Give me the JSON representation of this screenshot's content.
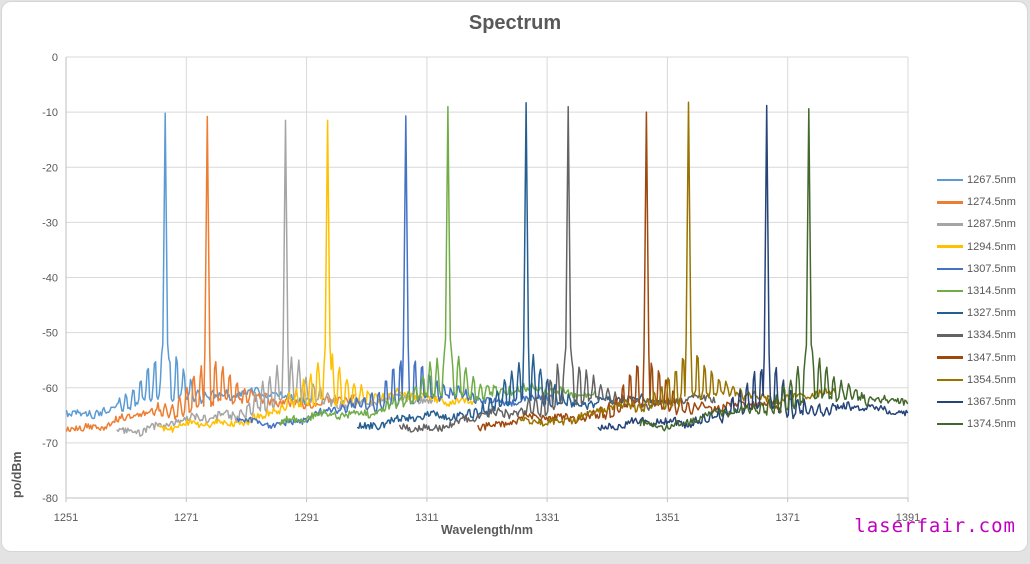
{
  "watermark": {
    "text": "laserfair.com",
    "color": "#C000C0"
  },
  "colors": {
    "background": "#ffffff",
    "frame_border": "#d6d6d6",
    "gridline": "#d9d9d9",
    "axis_line": "#bfbfbf",
    "text": "#595959"
  },
  "chart_data": {
    "type": "line",
    "title": "Spectrum",
    "xlabel": "Wavelength/nm",
    "ylabel": "po/dBm",
    "xlim": [
      1251,
      1391
    ],
    "ylim": [
      -80,
      0
    ],
    "x_ticks": [
      1251,
      1271,
      1291,
      1311,
      1331,
      1351,
      1371,
      1391
    ],
    "y_ticks": [
      0,
      -10,
      -20,
      -30,
      -40,
      -50,
      -60,
      -70,
      -80
    ],
    "grid": true,
    "legend_position": "right",
    "sidemode_period_nm": 1.2,
    "series": [
      {
        "name": "1267.5nm",
        "color": "#5B9BD5",
        "peak_nm": 1267.5,
        "peak_dbm": -10.2,
        "x_start": 1251.0,
        "x_end": 1292.0,
        "floor_start_dbm": -64.5,
        "floor_end_dbm": -61.5
      },
      {
        "name": "1274.5nm",
        "color": "#ED7D31",
        "peak_nm": 1274.5,
        "peak_dbm": -10.8,
        "x_start": 1251.0,
        "x_end": 1299.0,
        "floor_start_dbm": -67.0,
        "floor_end_dbm": -62.5
      },
      {
        "name": "1287.5nm",
        "color": "#A5A5A5",
        "peak_nm": 1287.5,
        "peak_dbm": -11.5,
        "x_start": 1259.5,
        "x_end": 1312.0,
        "floor_start_dbm": -67.5,
        "floor_end_dbm": -62.5
      },
      {
        "name": "1294.5nm",
        "color": "#FFC000",
        "peak_nm": 1294.5,
        "peak_dbm": -11.5,
        "x_start": 1266.5,
        "x_end": 1319.0,
        "floor_start_dbm": -67.5,
        "floor_end_dbm": -62.0
      },
      {
        "name": "1307.5nm",
        "color": "#4472C4",
        "peak_nm": 1307.5,
        "peak_dbm": -10.7,
        "x_start": 1279.5,
        "x_end": 1332.0,
        "floor_start_dbm": -66.5,
        "floor_end_dbm": -62.0
      },
      {
        "name": "1314.5nm",
        "color": "#70AD47",
        "peak_nm": 1314.5,
        "peak_dbm": -9.0,
        "x_start": 1286.5,
        "x_end": 1339.0,
        "floor_start_dbm": -66.0,
        "floor_end_dbm": -60.8
      },
      {
        "name": "1327.5nm",
        "color": "#255E91",
        "peak_nm": 1327.5,
        "peak_dbm": -8.3,
        "x_start": 1299.5,
        "x_end": 1352.0,
        "floor_start_dbm": -66.5,
        "floor_end_dbm": -62.5
      },
      {
        "name": "1334.5nm",
        "color": "#636363",
        "peak_nm": 1334.5,
        "peak_dbm": -9.0,
        "x_start": 1306.5,
        "x_end": 1359.0,
        "floor_start_dbm": -67.0,
        "floor_end_dbm": -62.5
      },
      {
        "name": "1347.5nm",
        "color": "#9E480E",
        "peak_nm": 1347.5,
        "peak_dbm": -10.0,
        "x_start": 1319.5,
        "x_end": 1370.0,
        "floor_start_dbm": -66.5,
        "floor_end_dbm": -63.5
      },
      {
        "name": "1354.5nm",
        "color": "#997300",
        "peak_nm": 1354.5,
        "peak_dbm": -8.2,
        "x_start": 1326.5,
        "x_end": 1379.0,
        "floor_start_dbm": -66.0,
        "floor_end_dbm": -61.5
      },
      {
        "name": "1367.5nm",
        "color": "#264478",
        "peak_nm": 1367.5,
        "peak_dbm": -8.8,
        "x_start": 1339.5,
        "x_end": 1391.0,
        "floor_start_dbm": -67.0,
        "floor_end_dbm": -64.0
      },
      {
        "name": "1374.5nm",
        "color": "#43682B",
        "peak_nm": 1374.5,
        "peak_dbm": -9.4,
        "x_start": 1346.5,
        "x_end": 1391.0,
        "floor_start_dbm": -66.5,
        "floor_end_dbm": -62.0
      }
    ]
  }
}
